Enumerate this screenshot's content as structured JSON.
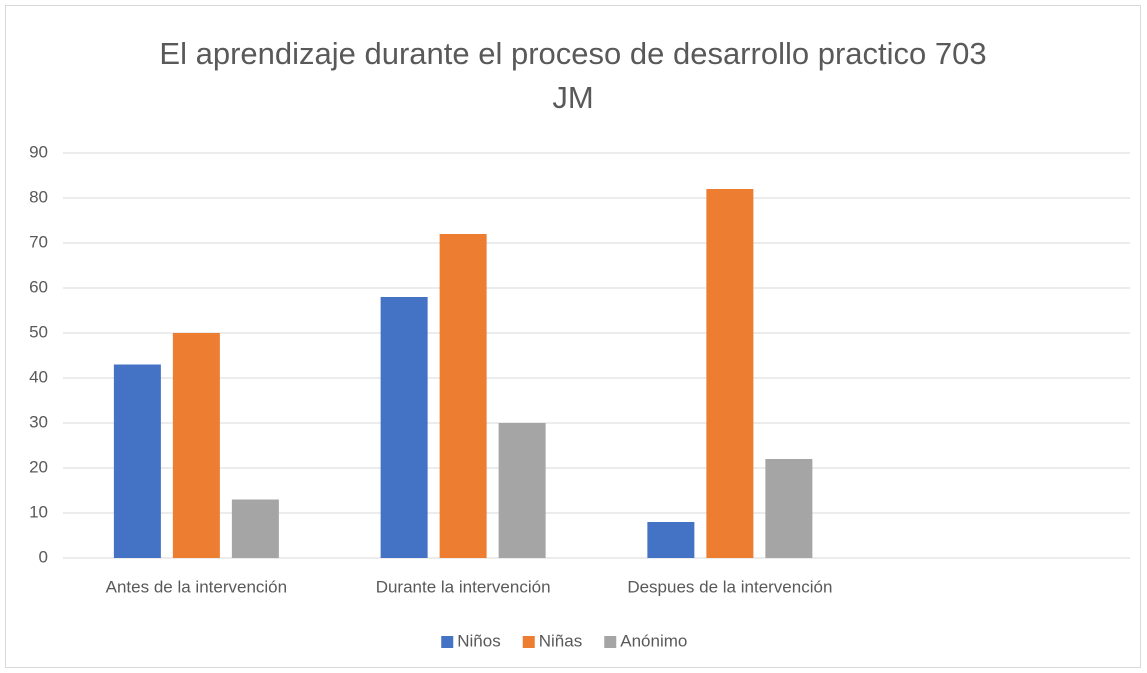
{
  "chart_data": {
    "type": "bar",
    "title": "El aprendizaje durante el proceso de desarrollo practico 703 JM",
    "categories": [
      "Antes de la intervención",
      "Durante la intervención",
      "Despues de la intervención",
      null
    ],
    "series": [
      {
        "name": "Niños",
        "color": "#4472c4",
        "values": [
          43,
          58,
          8,
          null
        ]
      },
      {
        "name": "Niñas",
        "color": "#ed7d31",
        "values": [
          50,
          72,
          82,
          null
        ]
      },
      {
        "name": "Anónimo",
        "color": "#a5a5a5",
        "values": [
          13,
          30,
          22,
          null
        ]
      }
    ],
    "ylim": [
      0,
      90
    ],
    "yticks": [
      0,
      10,
      20,
      30,
      40,
      50,
      60,
      70,
      80,
      90
    ],
    "grid": true,
    "legend": "bottom"
  }
}
